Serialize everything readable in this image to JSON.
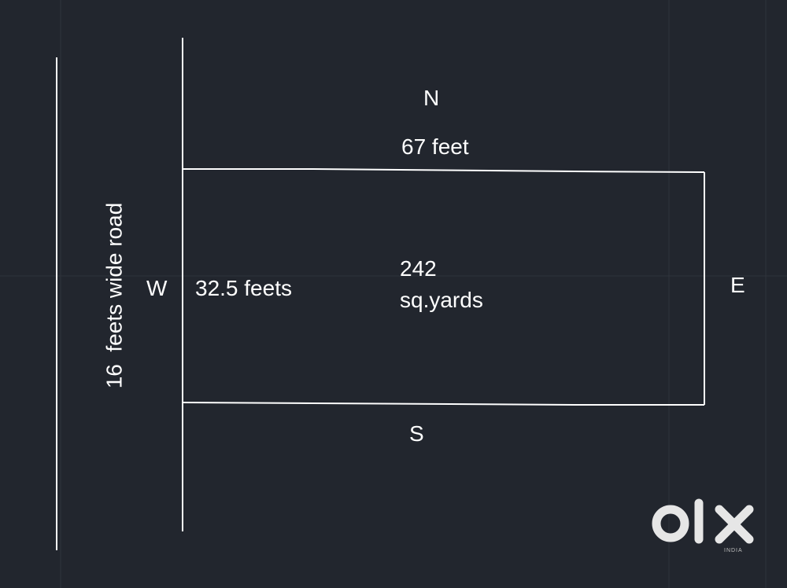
{
  "labels": {
    "north": "N",
    "south": "S",
    "east": "E",
    "west": "W",
    "width": "67 feet",
    "depth": "32.5 feets",
    "area_value": "242",
    "area_unit": "sq.yards",
    "road": "16  feets wide road"
  },
  "logo": {
    "brand": "OLX",
    "region": "INDIA",
    "color": "#e6e6e6"
  },
  "colors": {
    "background": "#22262e",
    "lines": "#ffffff",
    "grid": "#3a3f48"
  }
}
